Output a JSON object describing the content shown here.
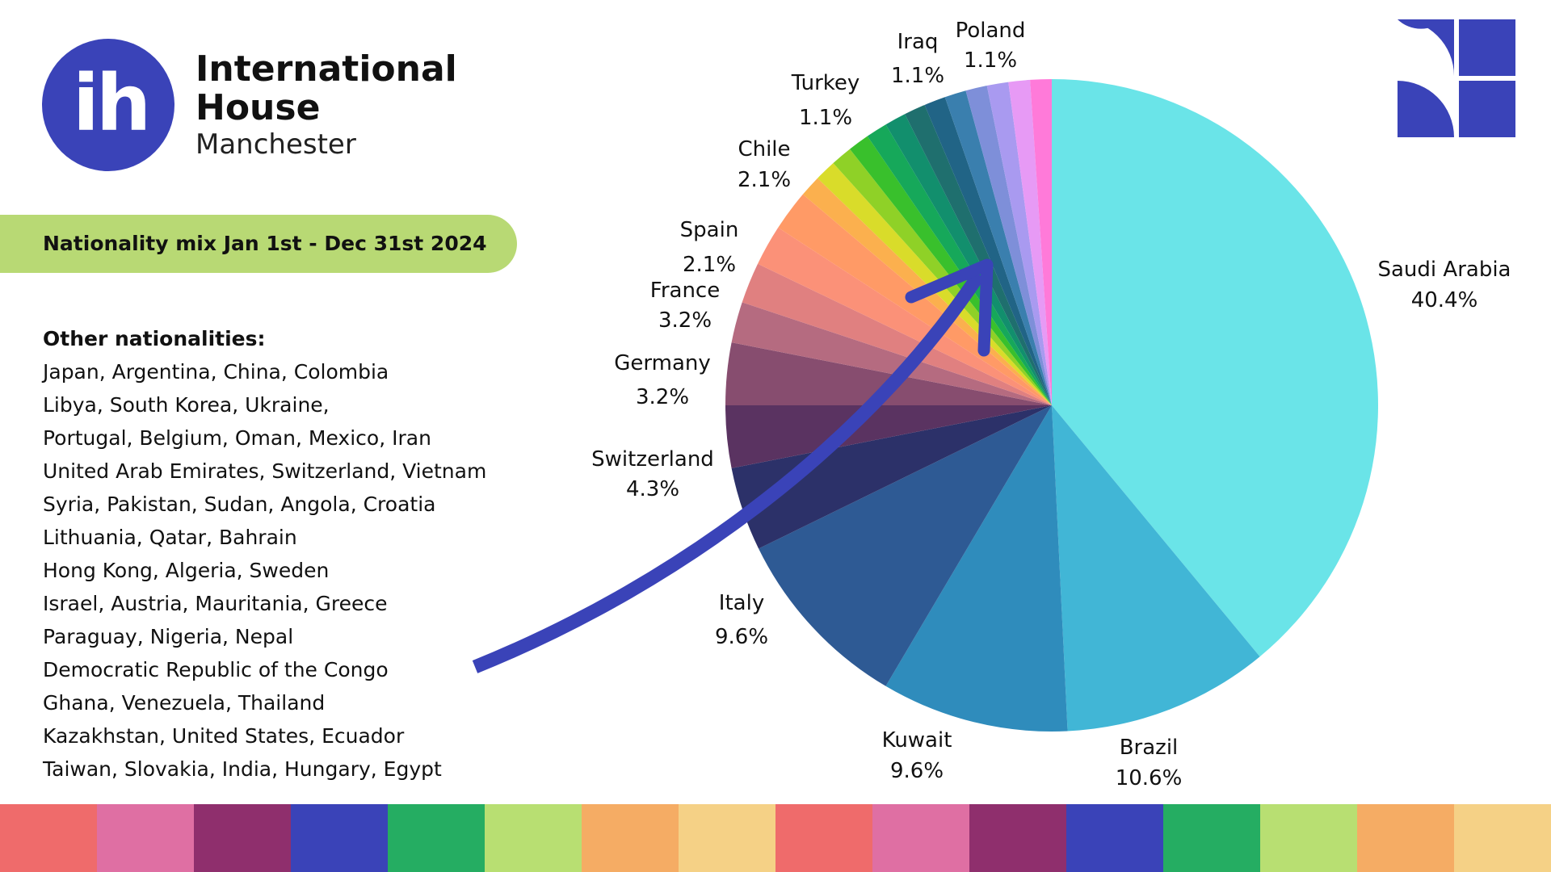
{
  "logo": {
    "mark": "ih",
    "line1": "International",
    "line2": "House",
    "line3": "Manchester"
  },
  "banner": "Nationality mix Jan 1st - Dec 31st 2024",
  "other_nationalities": {
    "title": "Other nationalities:",
    "lines": [
      "Japan, Argentina, China,  Colombia",
      "Libya, South Korea, Ukraine,",
      "Portugal, Belgium, Oman, Mexico, Iran",
      "United Arab Emirates, Switzerland, Vietnam",
      "Syria, Pakistan, Sudan, Angola, Croatia",
      "Lithuania, Qatar, Bahrain",
      "Hong Kong, Algeria, Sweden",
      "Israel, Austria, Mauritania, Greece",
      "Paraguay, Nigeria, Nepal",
      "Democratic Republic of the Congo",
      "Ghana, Venezuela, Thailand",
      "Kazakhstan, United States, Ecuador",
      "Taiwan, Slovakia, India, Hungary, Egypt"
    ]
  },
  "chart_data": {
    "type": "pie",
    "start": "top",
    "direction": "clockwise",
    "slices": [
      {
        "label": "Saudi Arabia",
        "pct": 40.4,
        "value_label": "40.4%",
        "color": "#6ae4e8"
      },
      {
        "label": "Brazil",
        "pct": 10.6,
        "value_label": "10.6%",
        "color": "#41b6d6"
      },
      {
        "label": "Kuwait",
        "pct": 9.6,
        "value_label": "9.6%",
        "color": "#2f8cbc"
      },
      {
        "label": "Italy",
        "pct": 9.6,
        "value_label": "9.6%",
        "color": "#2e5a94"
      },
      {
        "label": "Switzerland",
        "pct": 4.3,
        "value_label": "4.3%",
        "color": "#2c3169"
      },
      {
        "label": "Germany",
        "pct": 3.2,
        "value_label": "3.2%",
        "color": "#5a3361"
      },
      {
        "label": "France",
        "pct": 3.2,
        "value_label": "3.2%",
        "color": "#874d6f"
      },
      {
        "label": "",
        "pct": 2.1,
        "value_label": "",
        "color": "#b56b80"
      },
      {
        "label": "Spain",
        "pct": 2.1,
        "value_label": "2.1%",
        "color": "#e08080"
      },
      {
        "label": "",
        "pct": 2.1,
        "value_label": "",
        "color": "#fb9178"
      },
      {
        "label": "Chile",
        "pct": 2.1,
        "value_label": "2.1%",
        "color": "#ff9a66"
      },
      {
        "label": "",
        "pct": 1.1,
        "value_label": "",
        "color": "#fbb04e"
      },
      {
        "label": "",
        "pct": 1.1,
        "value_label": "",
        "color": "#d9dc2a"
      },
      {
        "label": "",
        "pct": 1.1,
        "value_label": "",
        "color": "#8fd127"
      },
      {
        "label": "",
        "pct": 1.1,
        "value_label": "",
        "color": "#39c02c"
      },
      {
        "label": "",
        "pct": 1.1,
        "value_label": "",
        "color": "#16a85a"
      },
      {
        "label": "",
        "pct": 1.1,
        "value_label": "",
        "color": "#128f6d"
      },
      {
        "label": "Turkey",
        "pct": 1.1,
        "value_label": "1.1%",
        "color": "#1f6f6e"
      },
      {
        "label": "",
        "pct": 1.1,
        "value_label": "",
        "color": "#216486"
      },
      {
        "label": "",
        "pct": 1.1,
        "value_label": "",
        "color": "#3a7fae"
      },
      {
        "label": "Iraq",
        "pct": 1.1,
        "value_label": "1.1%",
        "color": "#7e8fd9"
      },
      {
        "label": "",
        "pct": 1.1,
        "value_label": "",
        "color": "#a99af0"
      },
      {
        "label": "Poland",
        "pct": 1.1,
        "value_label": "1.1%",
        "color": "#e79af5"
      },
      {
        "label": "",
        "pct": 1.1,
        "value_label": "",
        "color": "#ff7ad9"
      }
    ]
  },
  "colors": {
    "brand": "#3a43b8",
    "banner": "#b8d974",
    "arrow": "#3a43b8",
    "stripe": [
      "#ef6b6b",
      "#df6fa3",
      "#8f2f6d",
      "#3a43b8",
      "#25ad62",
      "#b8df72",
      "#f5ac64",
      "#f5d186",
      "#ef6b6b",
      "#df6fa3",
      "#8f2f6d",
      "#3a43b8",
      "#25ad62",
      "#b8df72",
      "#f5ac64",
      "#f5d186"
    ]
  },
  "icons": {
    "corner": "brand-shapes-icon",
    "arrow": "curved-arrow-icon"
  }
}
